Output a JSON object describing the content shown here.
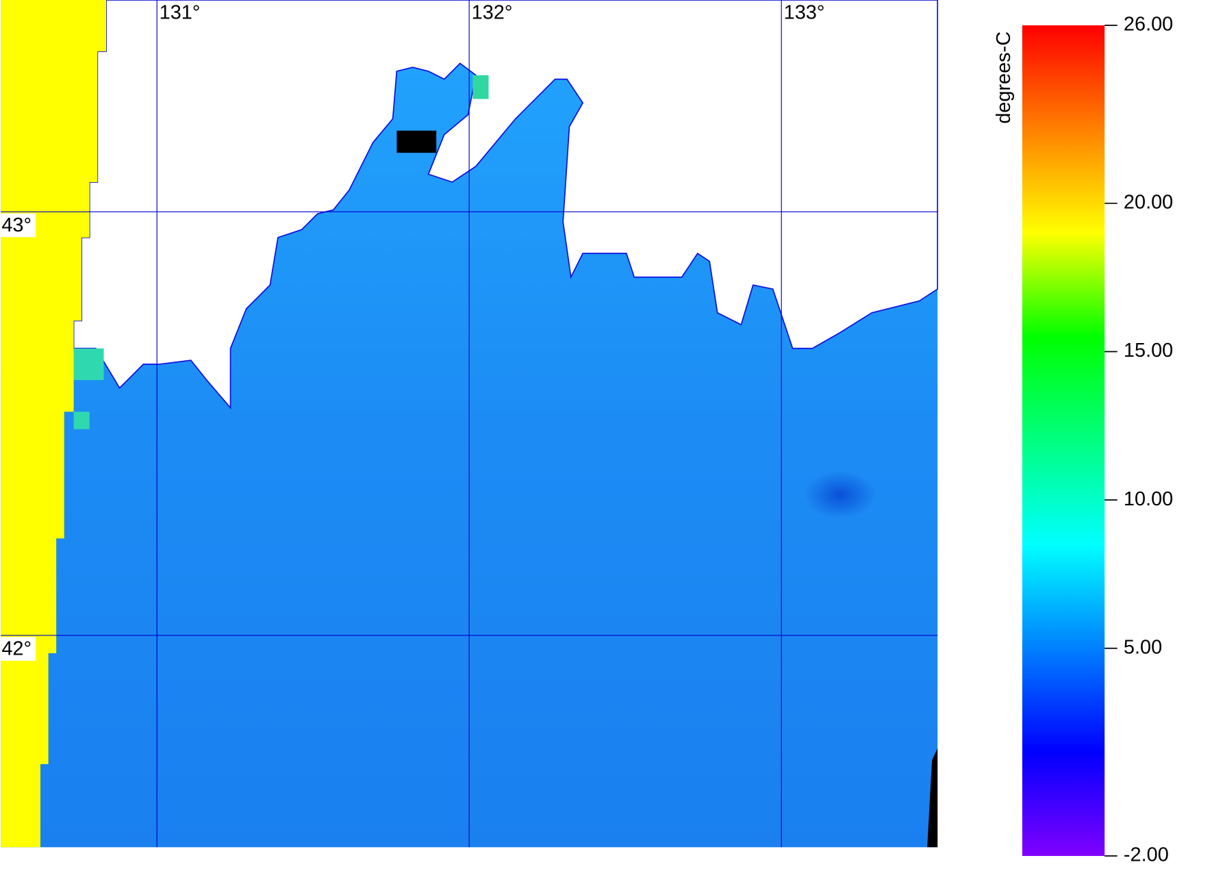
{
  "map": {
    "lonlim": [
      130.5,
      133.5
    ],
    "latlim": [
      41.5,
      43.5
    ],
    "lonticks": [
      {
        "value": 131,
        "label": "131°"
      },
      {
        "value": 132,
        "label": "132°"
      },
      {
        "value": 133,
        "label": "133°"
      }
    ],
    "latticks": [
      {
        "value": 43,
        "label": "43°"
      },
      {
        "value": 42,
        "label": "42°"
      }
    ],
    "colorbar": {
      "label": "degrees-C",
      "lim": [
        -2,
        26
      ],
      "colors": [
        "#8000ff",
        "#0000ff",
        "#0080ff",
        "#00ffff",
        "#00ff80",
        "#00ff00",
        "#ffff00",
        "#ff8000",
        "#ff0000"
      ],
      "ticks": [
        {
          "value": 26,
          "label": "26.00"
        },
        {
          "value": 20,
          "label": "20.00"
        },
        {
          "value": 15,
          "label": "15.00"
        },
        {
          "value": 10,
          "label": "10.00"
        },
        {
          "value": 5,
          "label": "5.00"
        },
        {
          "value": -2,
          "label": "-2.00"
        }
      ]
    }
  }
}
